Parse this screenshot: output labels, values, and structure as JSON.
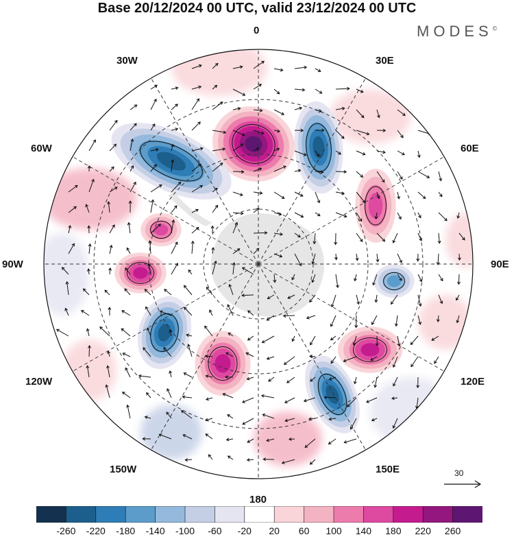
{
  "title": "Base 20/12/2024 00 UTC, valid 23/12/2024 00 UTC",
  "brand": "MODES",
  "brand_mark": "©",
  "lon_labels": {
    "top": "0",
    "top_left": "30W",
    "top_right": "30E",
    "upper_left": "60W",
    "upper_right": "60E",
    "left": "90W",
    "right": "90E",
    "lower_left": "120W",
    "lower_right": "120E",
    "bottom_left": "150W",
    "bottom_right": "150E",
    "bottom": "180"
  },
  "reference_vector": "30",
  "colorbar": {
    "labels": [
      "-260",
      "-220",
      "-180",
      "-140",
      "-100",
      "-60",
      "-20",
      "20",
      "60",
      "100",
      "140",
      "180",
      "220",
      "260"
    ],
    "colors": [
      "#14324f",
      "#1c5f8c",
      "#2f7db6",
      "#5b9ccb",
      "#94b9dc",
      "#c4cfe6",
      "#e5e5f2",
      "#ffffff",
      "#f9d5d9",
      "#f4b3c2",
      "#ec7cab",
      "#dd4aa0",
      "#c41b8f",
      "#93177f",
      "#5e1673"
    ]
  },
  "anomalies": [
    {
      "sign": "+",
      "value": 260,
      "region": "0° north sector"
    },
    {
      "sign": "-",
      "value": -220,
      "region": "30W-60W sector"
    },
    {
      "sign": "-",
      "value": -220,
      "region": "30E sector"
    },
    {
      "sign": "+",
      "value": 140,
      "region": "60E-90E sector"
    },
    {
      "sign": "-",
      "value": -140,
      "region": "90E sector"
    },
    {
      "sign": "+",
      "value": 180,
      "region": "120E sector"
    },
    {
      "sign": "-",
      "value": -220,
      "region": "150E sector"
    },
    {
      "sign": "+",
      "value": 180,
      "region": "150W-180 sector"
    },
    {
      "sign": "-",
      "value": -220,
      "region": "120W sector"
    },
    {
      "sign": "+",
      "value": 180,
      "region": "90W sector"
    },
    {
      "sign": "+",
      "value": 140,
      "region": "60W-90W sector"
    }
  ]
}
